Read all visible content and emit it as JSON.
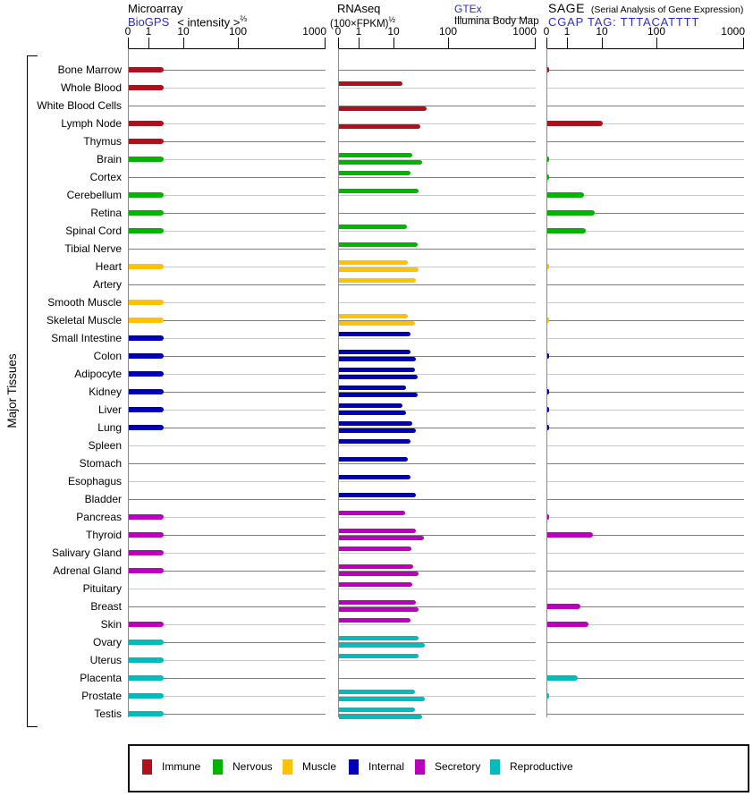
{
  "header": {
    "panel1": {
      "title": "Microarray",
      "link": "BioGPS",
      "scale_label": "< intensity >",
      "scale_exp": "⅔"
    },
    "panel2": {
      "title": "RNAseq",
      "scale_label": "(100×FPKM)",
      "scale_exp": "½",
      "link": "GTEx",
      "sublink": "Illumina Body Map"
    },
    "panel3": {
      "title": "SAGE",
      "subtitle": "(Serial Analysis of Gene Expression)",
      "link": "CGAP TAG: TTTACATTTT"
    }
  },
  "side_label": "Major Tissues",
  "chart_data": {
    "type": "bar",
    "orientation": "horizontal",
    "xscale": "nonlinear power scale, decades compressed",
    "axis_ticks": [
      0,
      1,
      10,
      100,
      1000
    ],
    "panels": [
      "Microarray (BioGPS)",
      "RNAseq GTEx",
      "RNAseq Illumina Body Map",
      "SAGE (CGAP)"
    ],
    "groups": [
      {
        "name": "Immune",
        "color": "#b20e1c"
      },
      {
        "name": "Nervous",
        "color": "#00b400"
      },
      {
        "name": "Muscle",
        "color": "#ffc103"
      },
      {
        "name": "Internal",
        "color": "#0000bb"
      },
      {
        "name": "Secretory",
        "color": "#bb00bb"
      },
      {
        "name": "Reproductive",
        "color": "#00bcbc"
      }
    ],
    "rows": [
      {
        "tissue": "Bone Marrow",
        "group": "Immune",
        "microarray": 3,
        "gtex": null,
        "illumina": null,
        "sage": 0.1
      },
      {
        "tissue": "Whole Blood",
        "group": "Immune",
        "microarray": 3,
        "gtex": 15,
        "illumina": null,
        "sage": null
      },
      {
        "tissue": "White Blood Cells",
        "group": "Immune",
        "microarray": null,
        "gtex": null,
        "illumina": 44,
        "sage": null
      },
      {
        "tissue": "Lymph Node",
        "group": "Immune",
        "microarray": 3,
        "gtex": null,
        "illumina": 34,
        "sage": 10
      },
      {
        "tissue": "Thymus",
        "group": "Immune",
        "microarray": 3,
        "gtex": null,
        "illumina": null,
        "sage": null
      },
      {
        "tissue": "Brain",
        "group": "Nervous",
        "microarray": 3,
        "gtex": 24,
        "illumina": 37,
        "sage": 0.1
      },
      {
        "tissue": "Cortex",
        "group": "Nervous",
        "microarray": null,
        "gtex": 22,
        "illumina": null,
        "sage": 0.1
      },
      {
        "tissue": "Cerebellum",
        "group": "Nervous",
        "microarray": 3,
        "gtex": 31,
        "illumina": null,
        "sage": 3.3
      },
      {
        "tissue": "Retina",
        "group": "Nervous",
        "microarray": 3,
        "gtex": null,
        "illumina": null,
        "sage": 6.6
      },
      {
        "tissue": "Spinal Cord",
        "group": "Nervous",
        "microarray": 3,
        "gtex": 19,
        "illumina": null,
        "sage": 3.8
      },
      {
        "tissue": "Tibial Nerve",
        "group": "Nervous",
        "microarray": null,
        "gtex": 30,
        "illumina": null,
        "sage": null
      },
      {
        "tissue": "Heart",
        "group": "Muscle",
        "microarray": 3,
        "gtex": 20,
        "illumina": 32,
        "sage": 0.1
      },
      {
        "tissue": "Artery",
        "group": "Muscle",
        "microarray": null,
        "gtex": 28,
        "illumina": null,
        "sage": null
      },
      {
        "tissue": "Smooth Muscle",
        "group": "Muscle",
        "microarray": 3,
        "gtex": null,
        "illumina": null,
        "sage": null
      },
      {
        "tissue": "Skeletal Muscle",
        "group": "Muscle",
        "microarray": 3,
        "gtex": 20,
        "illumina": 27,
        "sage": 0.1
      },
      {
        "tissue": "Small Intestine",
        "group": "Internal",
        "microarray": 3,
        "gtex": 22,
        "illumina": null,
        "sage": null
      },
      {
        "tissue": "Colon",
        "group": "Internal",
        "microarray": 3,
        "gtex": 22,
        "illumina": 28,
        "sage": 0.1
      },
      {
        "tissue": "Adipocyte",
        "group": "Internal",
        "microarray": 3,
        "gtex": 27,
        "illumina": 30,
        "sage": null
      },
      {
        "tissue": "Kidney",
        "group": "Internal",
        "microarray": 3,
        "gtex": 18,
        "illumina": 30,
        "sage": 0.1
      },
      {
        "tissue": "Liver",
        "group": "Internal",
        "microarray": 3,
        "gtex": 15,
        "illumina": 18,
        "sage": 0.1
      },
      {
        "tissue": "Lung",
        "group": "Internal",
        "microarray": 3,
        "gtex": 24,
        "illumina": 28,
        "sage": 0.1
      },
      {
        "tissue": "Spleen",
        "group": "Internal",
        "microarray": null,
        "gtex": 22,
        "illumina": null,
        "sage": null
      },
      {
        "tissue": "Stomach",
        "group": "Internal",
        "microarray": null,
        "gtex": 20,
        "illumina": null,
        "sage": null
      },
      {
        "tissue": "Esophagus",
        "group": "Internal",
        "microarray": null,
        "gtex": 22,
        "illumina": null,
        "sage": null
      },
      {
        "tissue": "Bladder",
        "group": "Internal",
        "microarray": null,
        "gtex": 28,
        "illumina": null,
        "sage": null
      },
      {
        "tissue": "Pancreas",
        "group": "Secretory",
        "microarray": 3,
        "gtex": 17,
        "illumina": null,
        "sage": 0.1
      },
      {
        "tissue": "Thyroid",
        "group": "Secretory",
        "microarray": 3,
        "gtex": 28,
        "illumina": 39,
        "sage": 6
      },
      {
        "tissue": "Salivary Gland",
        "group": "Secretory",
        "microarray": 3,
        "gtex": 23,
        "illumina": null,
        "sage": null
      },
      {
        "tissue": "Adrenal Gland",
        "group": "Secretory",
        "microarray": 3,
        "gtex": 25,
        "illumina": 32,
        "sage": null
      },
      {
        "tissue": "Pituitary",
        "group": "Secretory",
        "microarray": null,
        "gtex": 24,
        "illumina": null,
        "sage": null
      },
      {
        "tissue": "Breast",
        "group": "Secretory",
        "microarray": null,
        "gtex": 28,
        "illumina": 31,
        "sage": 2.6
      },
      {
        "tissue": "Skin",
        "group": "Secretory",
        "microarray": 3,
        "gtex": 22,
        "illumina": null,
        "sage": 4.4
      },
      {
        "tissue": "Ovary",
        "group": "Reproductive",
        "microarray": 3,
        "gtex": 32,
        "illumina": 41,
        "sage": null
      },
      {
        "tissue": "Uterus",
        "group": "Reproductive",
        "microarray": 3,
        "gtex": 31,
        "illumina": null,
        "sage": null
      },
      {
        "tissue": "Placenta",
        "group": "Reproductive",
        "microarray": 3,
        "gtex": null,
        "illumina": null,
        "sage": 2.2
      },
      {
        "tissue": "Prostate",
        "group": "Reproductive",
        "microarray": 3,
        "gtex": 27,
        "illumina": 41,
        "sage": 0.1
      },
      {
        "tissue": "Testis",
        "group": "Reproductive",
        "microarray": 3,
        "gtex": 27,
        "illumina": 37,
        "sage": null
      }
    ]
  }
}
